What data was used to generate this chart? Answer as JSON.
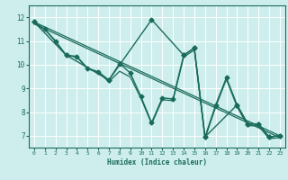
{
  "xlabel": "Humidex (Indice chaleur)",
  "bg_color": "#cdeeed",
  "grid_color": "#ffffff",
  "line_color": "#1a6b5a",
  "xlim": [
    -0.5,
    23.5
  ],
  "ylim": [
    6.5,
    12.5
  ],
  "xticks": [
    0,
    1,
    2,
    3,
    4,
    5,
    6,
    7,
    8,
    9,
    10,
    11,
    12,
    13,
    14,
    15,
    16,
    17,
    18,
    19,
    20,
    21,
    22,
    23
  ],
  "yticks": [
    7,
    8,
    9,
    10,
    11,
    12
  ],
  "series": [
    {
      "x": [
        0,
        1,
        2,
        3,
        4,
        5,
        6,
        7,
        8,
        9,
        10,
        11,
        12,
        13,
        14,
        15,
        16,
        17,
        18,
        19,
        20,
        21,
        22,
        23
      ],
      "y": [
        11.8,
        11.5,
        11.0,
        10.4,
        10.35,
        9.85,
        9.7,
        9.35,
        10.05,
        9.65,
        8.65,
        7.55,
        8.6,
        8.55,
        10.4,
        10.7,
        6.95,
        8.3,
        9.45,
        8.3,
        7.5,
        7.5,
        6.95,
        7.0
      ],
      "marker": "D",
      "markersize": 2.5,
      "linewidth": 1.0
    },
    {
      "x": [
        0,
        1,
        2,
        3,
        4,
        5,
        6,
        7,
        8,
        9,
        10,
        11,
        12,
        13,
        14,
        15,
        16,
        17,
        18,
        19,
        20,
        21,
        22,
        23
      ],
      "y": [
        11.75,
        11.48,
        10.98,
        10.38,
        10.32,
        9.82,
        9.68,
        9.28,
        9.72,
        9.48,
        8.58,
        7.5,
        8.52,
        8.48,
        10.32,
        10.62,
        6.88,
        8.22,
        9.38,
        8.22,
        7.42,
        7.42,
        6.88,
        6.92
      ],
      "marker": null,
      "markersize": 0,
      "linewidth": 0.9
    },
    {
      "x": [
        0,
        3,
        7,
        11,
        14,
        15,
        16,
        19,
        20,
        21,
        22,
        23
      ],
      "y": [
        11.8,
        10.4,
        9.35,
        11.9,
        10.4,
        10.7,
        6.95,
        8.3,
        7.5,
        7.5,
        6.95,
        7.0
      ],
      "marker": "D",
      "markersize": 2.5,
      "linewidth": 1.0
    },
    {
      "x": [
        0,
        23
      ],
      "y": [
        11.8,
        7.0
      ],
      "marker": null,
      "markersize": 0,
      "linewidth": 0.9
    },
    {
      "x": [
        0,
        23
      ],
      "y": [
        11.72,
        6.92
      ],
      "marker": null,
      "markersize": 0,
      "linewidth": 0.9
    }
  ]
}
